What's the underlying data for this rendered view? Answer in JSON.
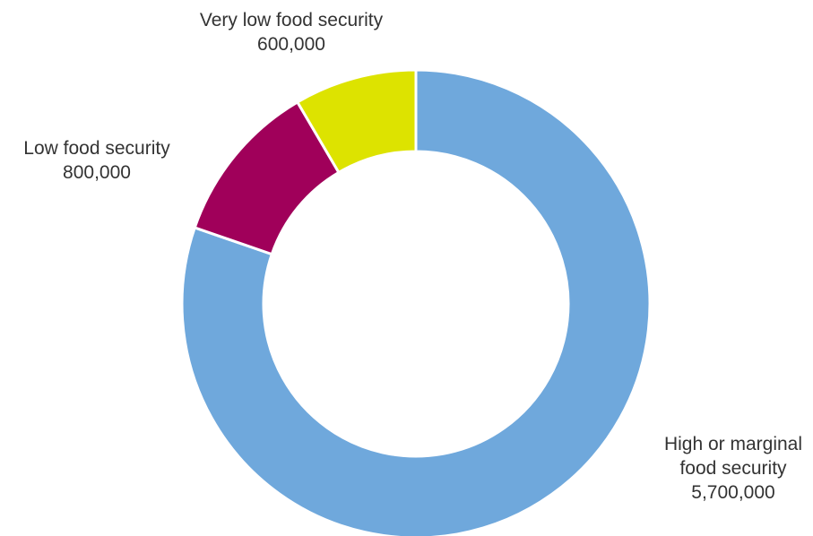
{
  "chart_data": {
    "type": "pie",
    "variant": "donut",
    "title": "",
    "categories": [
      "High or marginal food security",
      "Low food security",
      "Very low food security"
    ],
    "values": [
      5700000,
      800000,
      600000
    ],
    "value_labels": [
      "5,700,000",
      "800,000",
      "600,000"
    ],
    "label_lines": [
      [
        "High  or marginal",
        "food security"
      ],
      [
        "Low food security"
      ],
      [
        "Very low food security"
      ]
    ],
    "colors": [
      "#6fa8dc",
      "#a0005a",
      "#dde300"
    ],
    "start_angle_deg": 0,
    "direction": "clockwise",
    "legend": "none",
    "data_labels": "outside"
  }
}
